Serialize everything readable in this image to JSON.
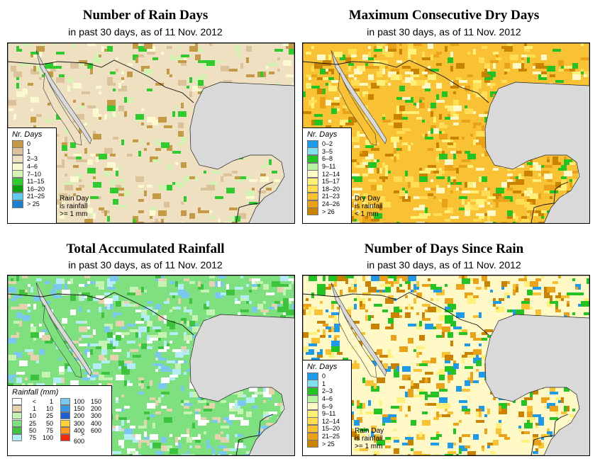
{
  "panels": {
    "rain_days": {
      "title": "Number of Rain Days",
      "subtitle": "in past 30 days, as of  11 Nov. 2012",
      "legend_title": "Nr. Days",
      "legend": [
        {
          "label": "0",
          "color": "#c49a47"
        },
        {
          "label": "1",
          "color": "#dcc29a"
        },
        {
          "label": "2–3",
          "color": "#f0e0c2"
        },
        {
          "label": "4–6",
          "color": "#fbf9d0"
        },
        {
          "label": "7–10",
          "color": "#d3f3b2"
        },
        {
          "label": "11–15",
          "color": "#2fcb2f"
        },
        {
          "label": "16–20",
          "color": "#0a9e0a"
        },
        {
          "label": "21–25",
          "color": "#5fcaf0"
        },
        {
          "label": "> 25",
          "color": "#1e7fd0"
        }
      ],
      "note": "Rain Day\nis rainfall\n>= 1 mm"
    },
    "dry_days": {
      "title": "Maximum Consecutive Dry Days",
      "subtitle": "in past 30 days, as of  11 Nov. 2012",
      "legend_title": "Nr. Days",
      "legend": [
        {
          "label": "0–2",
          "color": "#1e9ae8"
        },
        {
          "label": "3–5",
          "color": "#7fe0f0"
        },
        {
          "label": "6–8",
          "color": "#22c322"
        },
        {
          "label": "9–11",
          "color": "#b9f2a0"
        },
        {
          "label": "12–14",
          "color": "#fff9c8"
        },
        {
          "label": "15–17",
          "color": "#fff07a"
        },
        {
          "label": "18–20",
          "color": "#ffdd55"
        },
        {
          "label": "21–23",
          "color": "#f8c234"
        },
        {
          "label": "24–26",
          "color": "#eaa318"
        },
        {
          "label": "> 26",
          "color": "#c98300"
        }
      ],
      "note": "Dry Day\nis rainfall\n< 1 mm"
    },
    "rainfall": {
      "title": "Total Accumulated Rainfall",
      "subtitle": "in past 30 days, as of  11 Nov. 2012",
      "legend_title": "Rainfall (mm)",
      "legend_left": [
        {
          "a": "<",
          "b": "1",
          "color": "#ffffff"
        },
        {
          "a": "1",
          "b": "10",
          "color": "#e7d2b0"
        },
        {
          "a": "10",
          "b": "25",
          "color": "#c5f3b4"
        },
        {
          "a": "25",
          "b": "50",
          "color": "#7fe07f"
        },
        {
          "a": "50",
          "b": "75",
          "color": "#3ec33e"
        },
        {
          "a": "75",
          "b": "100",
          "color": "#b4ecf7"
        }
      ],
      "legend_right": [
        {
          "a": "100",
          "b": "150",
          "color": "#7ac7f0"
        },
        {
          "a": "150",
          "b": "200",
          "color": "#3a96e6"
        },
        {
          "a": "200",
          "b": "300",
          "color": "#1c5fd0"
        },
        {
          "a": "300",
          "b": "400",
          "color": "#ffd23a"
        },
        {
          "a": "400",
          "b": "600",
          "color": "#ff9a1a"
        },
        {
          "a": "> 600",
          "b": "",
          "color": "#ee2a10"
        }
      ]
    },
    "since_rain": {
      "title": "Number of Days Since Rain",
      "subtitle": "in past 30 days, as of  11 Nov. 2012",
      "legend_title": "Nr. Days",
      "legend": [
        {
          "label": "0",
          "color": "#1e9ae8"
        },
        {
          "label": "1",
          "color": "#7fe0f0"
        },
        {
          "label": "2–3",
          "color": "#22c322"
        },
        {
          "label": "4–6",
          "color": "#b9f2a0"
        },
        {
          "label": "6–9",
          "color": "#fff9c8"
        },
        {
          "label": "9–11",
          "color": "#fff07a"
        },
        {
          "label": "12–14",
          "color": "#ffdd55"
        },
        {
          "label": "15–20",
          "color": "#f8c234"
        },
        {
          "label": "21–25",
          "color": "#eaa318"
        },
        {
          "label": "> 25",
          "color": "#c98300"
        }
      ],
      "note": "Rain Day\nis rainfall\n>= 1 mm"
    }
  },
  "colors": {
    "ocean": "#d9d9d9",
    "rain_base": "#f0e0c2",
    "dry_base": "#f8c234",
    "rainfall_base": "#7fe07f",
    "since_base": "#fff9c8"
  }
}
